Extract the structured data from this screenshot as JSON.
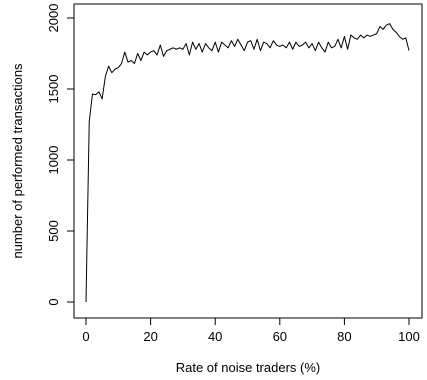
{
  "chart_data": {
    "type": "line",
    "title": "",
    "xlabel": "Rate of noise traders (%)",
    "ylabel": "number of performed transactions",
    "xlim": [
      0,
      100
    ],
    "ylim": [
      0,
      2000
    ],
    "x_ticks": [
      0,
      20,
      40,
      60,
      80,
      100
    ],
    "y_ticks": [
      0,
      500,
      1000,
      1500,
      2000
    ],
    "grid": false,
    "legend": "none",
    "line_color": "#000000",
    "x": [
      0,
      1,
      2,
      3,
      4,
      5,
      6,
      7,
      8,
      9,
      10,
      11,
      12,
      13,
      14,
      15,
      16,
      17,
      18,
      19,
      20,
      21,
      22,
      23,
      24,
      25,
      26,
      27,
      28,
      29,
      30,
      31,
      32,
      33,
      34,
      35,
      36,
      37,
      38,
      39,
      40,
      41,
      42,
      43,
      44,
      45,
      46,
      47,
      48,
      49,
      50,
      51,
      52,
      53,
      54,
      55,
      56,
      57,
      58,
      59,
      60,
      61,
      62,
      63,
      64,
      65,
      66,
      67,
      68,
      69,
      70,
      71,
      72,
      73,
      74,
      75,
      76,
      77,
      78,
      79,
      80,
      81,
      82,
      83,
      84,
      85,
      86,
      87,
      88,
      89,
      90,
      91,
      92,
      93,
      94,
      95,
      96,
      97,
      98,
      99,
      100
    ],
    "y": [
      0,
      1270,
      1465,
      1460,
      1480,
      1430,
      1590,
      1660,
      1615,
      1640,
      1650,
      1680,
      1760,
      1690,
      1700,
      1680,
      1750,
      1700,
      1760,
      1740,
      1760,
      1770,
      1740,
      1810,
      1730,
      1770,
      1780,
      1790,
      1780,
      1790,
      1780,
      1820,
      1740,
      1830,
      1780,
      1820,
      1760,
      1820,
      1790,
      1770,
      1830,
      1760,
      1830,
      1810,
      1790,
      1840,
      1800,
      1850,
      1810,
      1770,
      1830,
      1840,
      1780,
      1850,
      1770,
      1830,
      1820,
      1790,
      1840,
      1810,
      1800,
      1810,
      1790,
      1830,
      1780,
      1830,
      1800,
      1810,
      1830,
      1790,
      1820,
      1770,
      1830,
      1790,
      1760,
      1830,
      1790,
      1800,
      1850,
      1790,
      1870,
      1780,
      1880,
      1860,
      1850,
      1880,
      1860,
      1880,
      1870,
      1880,
      1890,
      1940,
      1920,
      1950,
      1960,
      1920,
      1900,
      1870,
      1850,
      1860,
      1770
    ]
  }
}
